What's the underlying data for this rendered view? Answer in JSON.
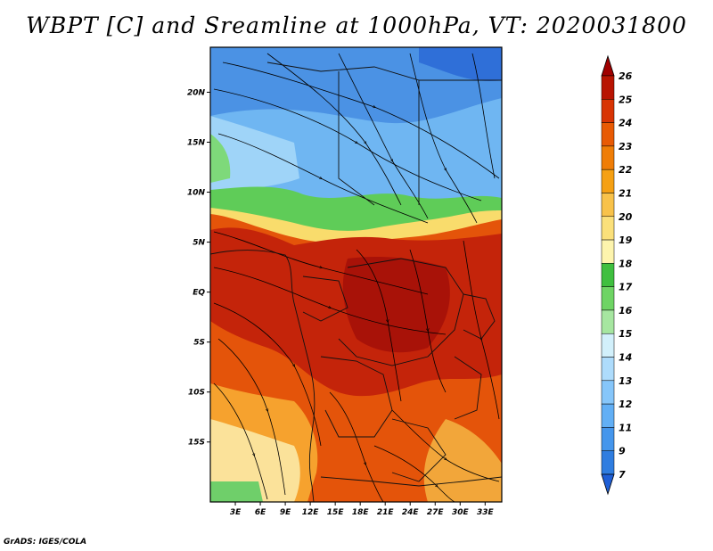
{
  "title": "WBPT [C] and Sreamline at 1000hPa, VT: 2020031800",
  "credit": "GrADS: IGES/COLA",
  "map": {
    "lat_range": [
      -21,
      24.5
    ],
    "lon_range": [
      0,
      35
    ],
    "lat_ticks": [
      {
        "lat": 20,
        "label": "20N"
      },
      {
        "lat": 15,
        "label": "15N"
      },
      {
        "lat": 10,
        "label": "10N"
      },
      {
        "lat": 5,
        "label": "5N"
      },
      {
        "lat": 0,
        "label": "EQ"
      },
      {
        "lat": -5,
        "label": "5S"
      },
      {
        "lat": -10,
        "label": "10S"
      },
      {
        "lat": -15,
        "label": "15S"
      }
    ],
    "lon_ticks": [
      {
        "lon": 3,
        "label": "3E"
      },
      {
        "lon": 6,
        "label": "6E"
      },
      {
        "lon": 9,
        "label": "9E"
      },
      {
        "lon": 12,
        "label": "12E"
      },
      {
        "lon": 15,
        "label": "15E"
      },
      {
        "lon": 18,
        "label": "18E"
      },
      {
        "lon": 21,
        "label": "21E"
      },
      {
        "lon": 24,
        "label": "24E"
      },
      {
        "lon": 27,
        "label": "27E"
      },
      {
        "lon": 30,
        "label": "30E"
      },
      {
        "lon": 33,
        "label": "33E"
      }
    ]
  },
  "colorbar": {
    "levels": [
      "7",
      "9",
      "11",
      "12",
      "13",
      "14",
      "15",
      "16",
      "17",
      "18",
      "19",
      "20",
      "21",
      "22",
      "23",
      "24",
      "25",
      "26"
    ],
    "colors": [
      "#1f5fd6",
      "#2f7de0",
      "#4596ec",
      "#62aff5",
      "#86c6fa",
      "#aedcfc",
      "#d2f0fb",
      "#a6e6a0",
      "#6ed464",
      "#3fbf3f",
      "#fdf4ad",
      "#fbe07a",
      "#f8c24a",
      "#f5a013",
      "#ef7d06",
      "#e85a04",
      "#d83404",
      "#b81402",
      "#a00000"
    ]
  }
}
